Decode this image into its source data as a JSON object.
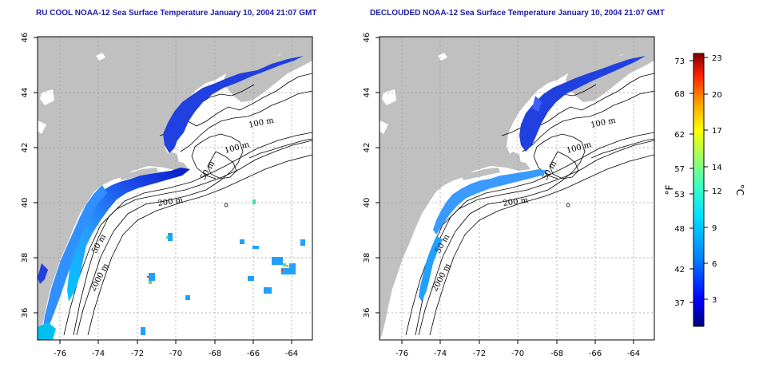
{
  "panels": [
    {
      "title": "RU COOL NOAA-12 Sea Surface Temperature January 10, 2004 21:07 GMT",
      "depth_labels": [
        "100 m",
        "100 m",
        "50 m",
        "200 m",
        "50 m",
        "2000 m"
      ]
    },
    {
      "title": "DECLOUDED NOAA-12 Sea Surface Temperature January 10, 2004 21:07 GMT",
      "depth_labels": [
        "100 m",
        "100 m",
        "50 m",
        "200 m",
        "50 m",
        "2000 m"
      ]
    }
  ],
  "map": {
    "lon_ticks": [
      "-76",
      "-74",
      "-72",
      "-70",
      "-68",
      "-66",
      "-64"
    ],
    "lat_ticks": [
      "46",
      "44",
      "42",
      "40",
      "38",
      "36"
    ],
    "land_color": "#c0c0c0",
    "ocean_color": "#ffffff",
    "grid": "dotted"
  },
  "colorbar": {
    "fahrenheit_ticks": [
      "73",
      "68",
      "62",
      "57",
      "53",
      "48",
      "42",
      "37"
    ],
    "celsius_ticks": [
      "23",
      "20",
      "17",
      "14",
      "12",
      "9",
      "6",
      "3"
    ],
    "left_unit": "°F",
    "right_unit": "°C",
    "colors": [
      "#000080",
      "#0000ff",
      "#0080ff",
      "#00e0ff",
      "#40ffc0",
      "#a0ff60",
      "#ffff00",
      "#ffa000",
      "#ff2000",
      "#800000"
    ]
  }
}
